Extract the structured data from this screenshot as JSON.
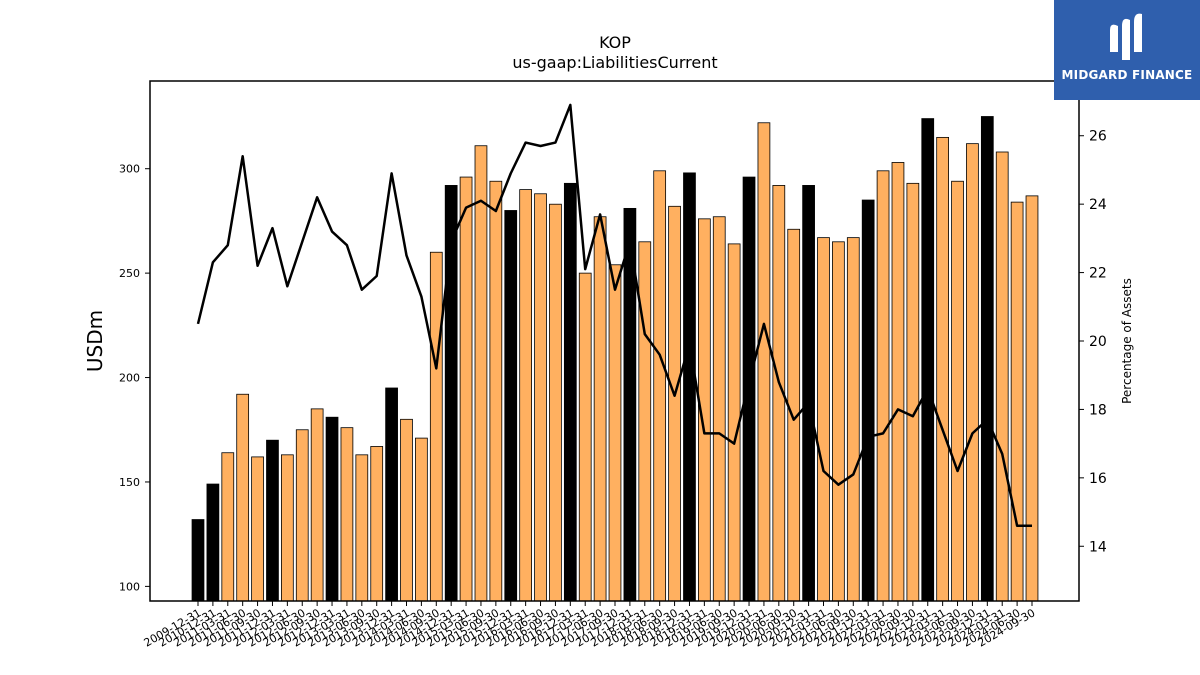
{
  "chart_data": {
    "type": "bar",
    "title": "KOP",
    "subtitle": "us-gaap:LiabilitiesCurrent",
    "ylabel": "USDm",
    "y2label": "Percentage of Assets",
    "ylim": [
      93,
      342
    ],
    "y2lim": [
      12.4,
      27.6
    ],
    "yticks": [
      100,
      150,
      200,
      250,
      300
    ],
    "y2ticks": [
      14,
      16,
      18,
      20,
      22,
      24,
      26
    ],
    "colors": {
      "annual": "#000000",
      "quarterly": "#ffb060",
      "line": "#000000"
    },
    "categories": [
      "2009-12-31",
      "2010-12-31",
      "2011-03-31",
      "2011-06-30",
      "2011-09-30",
      "2011-12-31",
      "2012-03-31",
      "2012-06-30",
      "2012-09-30",
      "2012-12-31",
      "2013-03-31",
      "2013-06-30",
      "2013-09-30",
      "2013-12-31",
      "2014-03-31",
      "2014-06-30",
      "2014-09-30",
      "2014-12-31",
      "2015-03-31",
      "2015-06-30",
      "2015-09-30",
      "2015-12-31",
      "2016-03-31",
      "2016-06-30",
      "2016-09-30",
      "2016-12-31",
      "2017-03-31",
      "2017-06-30",
      "2017-09-30",
      "2017-12-31",
      "2018-03-31",
      "2018-06-30",
      "2018-09-30",
      "2018-12-31",
      "2019-03-31",
      "2019-06-30",
      "2019-09-30",
      "2019-12-31",
      "2020-03-31",
      "2020-06-30",
      "2020-09-30",
      "2020-12-31",
      "2021-03-31",
      "2021-06-30",
      "2021-09-30",
      "2021-12-31",
      "2022-03-31",
      "2022-06-30",
      "2022-09-30",
      "2022-12-31",
      "2023-03-31",
      "2023-06-30",
      "2023-09-30",
      "2023-12-31",
      "2024-03-31",
      "2024-06-30",
      "2024-09-30"
    ],
    "series": [
      {
        "values": [
          132,
          149,
          164,
          192,
          162,
          170,
          163,
          175,
          185,
          181,
          176,
          163,
          167,
          195,
          180,
          171,
          260,
          292,
          296,
          311,
          294,
          280,
          290,
          288,
          283,
          293,
          250,
          277,
          254,
          281,
          265,
          299,
          282,
          298,
          276,
          277,
          264,
          296,
          322,
          292,
          271,
          292,
          267,
          265,
          267,
          285,
          299,
          303,
          293,
          324,
          315,
          294,
          312,
          325,
          308,
          284,
          287
        ]
      },
      {
        "values": [
          20.5,
          22.3,
          22.8,
          25.4,
          22.2,
          23.3,
          21.6,
          22.9,
          24.2,
          23.2,
          22.8,
          21.5,
          21.9,
          24.9,
          22.5,
          21.3,
          19.2,
          22.9,
          23.9,
          24.1,
          23.8,
          24.9,
          25.8,
          25.7,
          25.8,
          26.9,
          22.1,
          23.7,
          21.5,
          22.9,
          20.2,
          19.6,
          18.4,
          19.9,
          17.3,
          17.3,
          17.0,
          18.8,
          20.5,
          18.8,
          17.7,
          18.2,
          16.2,
          15.8,
          16.1,
          17.2,
          17.3,
          18.0,
          17.8,
          18.6,
          17.4,
          16.2,
          17.3,
          17.7,
          16.7,
          14.6,
          14.6
        ]
      }
    ]
  },
  "logo": {
    "text": "MIDGARD FINANCE"
  }
}
